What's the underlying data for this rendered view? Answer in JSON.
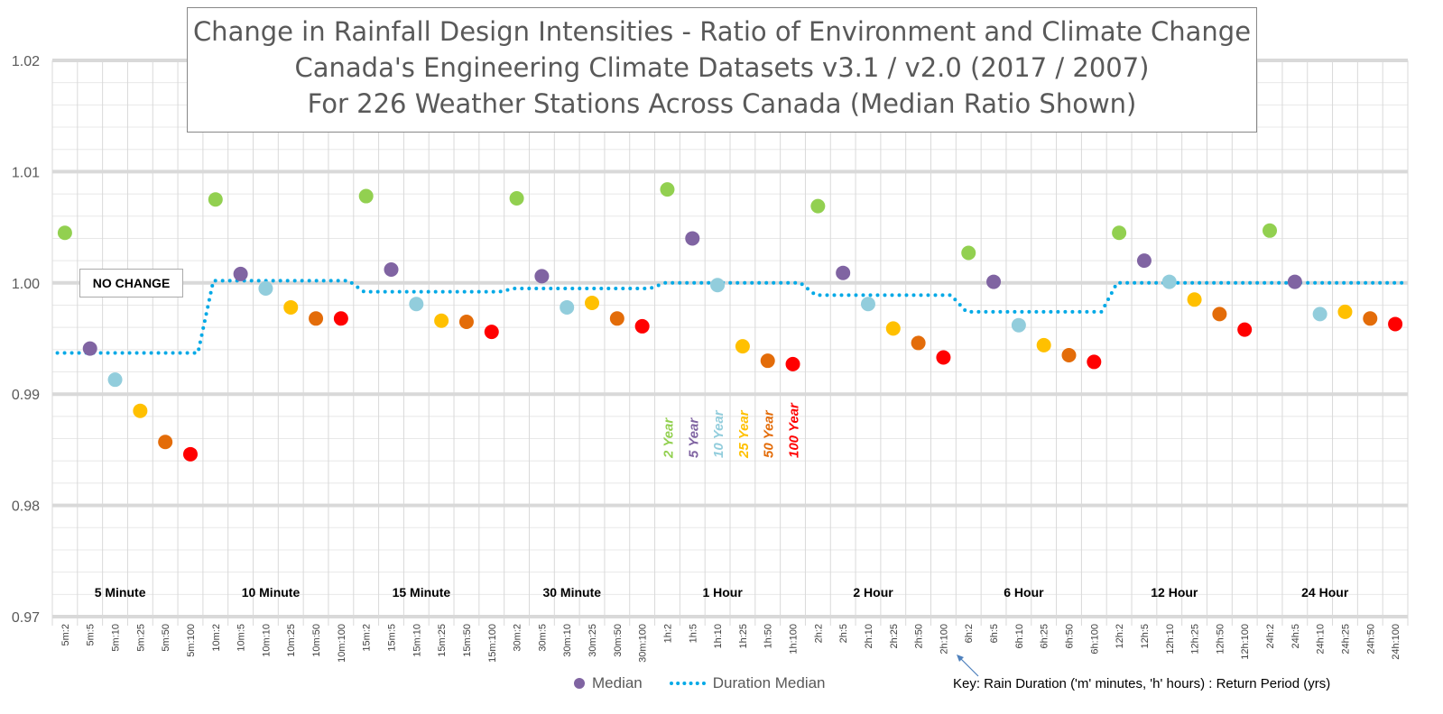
{
  "chart_data": {
    "type": "scatter",
    "title": [
      "Change in Rainfall Design Intensities - Ratio of Environment and Climate Change",
      "Canada's Engineering Climate Datasets v3.1 / v2.0 (2017 / 2007)",
      "For 226 Weather Stations Across Canada (Median Ratio Shown)"
    ],
    "ylim": [
      0.97,
      1.02
    ],
    "yticks": [
      "0.97",
      "0.98",
      "0.99",
      "1.00",
      "1.01",
      "1.02"
    ],
    "grid": true,
    "durations": [
      "5 Minute",
      "10 Minute",
      "15 Minute",
      "30 Minute",
      "1 Hour",
      "2 Hour",
      "6 Hour",
      "12 Hour",
      "24 Hour"
    ],
    "duration_codes": [
      "5m",
      "10m",
      "15m",
      "30m",
      "1h",
      "2h",
      "6h",
      "12h",
      "24h"
    ],
    "return_periods": [
      "2",
      "5",
      "10",
      "25",
      "50",
      "100"
    ],
    "return_period_labels": [
      "2 Year",
      "5 Year",
      "10 Year",
      "25 Year",
      "50 Year",
      "100 Year"
    ],
    "return_period_colors": [
      "#92d050",
      "#8064a2",
      "#92cddc",
      "#ffc000",
      "#e36c09",
      "#ff0000"
    ],
    "median_values": [
      [
        1.0045,
        0.9941,
        0.9913,
        0.9885,
        0.9857,
        0.9846
      ],
      [
        1.0075,
        1.0008,
        0.9995,
        0.9978,
        0.9968,
        0.9968
      ],
      [
        1.0078,
        1.0012,
        0.9981,
        0.9966,
        0.9965,
        0.9956
      ],
      [
        1.0076,
        1.0006,
        0.9978,
        0.9982,
        0.9968,
        0.9961
      ],
      [
        1.0084,
        1.004,
        0.9998,
        0.9943,
        0.993,
        0.9927
      ],
      [
        1.0069,
        1.0009,
        0.9981,
        0.9959,
        0.9946,
        0.9933
      ],
      [
        1.0027,
        1.0001,
        0.9962,
        0.9944,
        0.9935,
        0.9929
      ],
      [
        1.0045,
        1.002,
        1.0001,
        0.9985,
        0.9972,
        0.9958
      ],
      [
        1.0047,
        1.0001,
        0.9972,
        0.9974,
        0.9968,
        0.9963
      ]
    ],
    "duration_median": [
      0.9937,
      1.0002,
      0.9992,
      0.9995,
      1.0,
      0.9989,
      0.9974,
      1.0,
      1.0
    ],
    "duration_median_color": "#00a9e6",
    "legend": {
      "median": "Median",
      "duration_median": "Duration Median",
      "placement": "bottom"
    },
    "annotations": {
      "no_change": "NO CHANGE",
      "key": "Key:  Rain Duration ('m' minutes, 'h' hours) : Return Period (yrs)"
    }
  }
}
